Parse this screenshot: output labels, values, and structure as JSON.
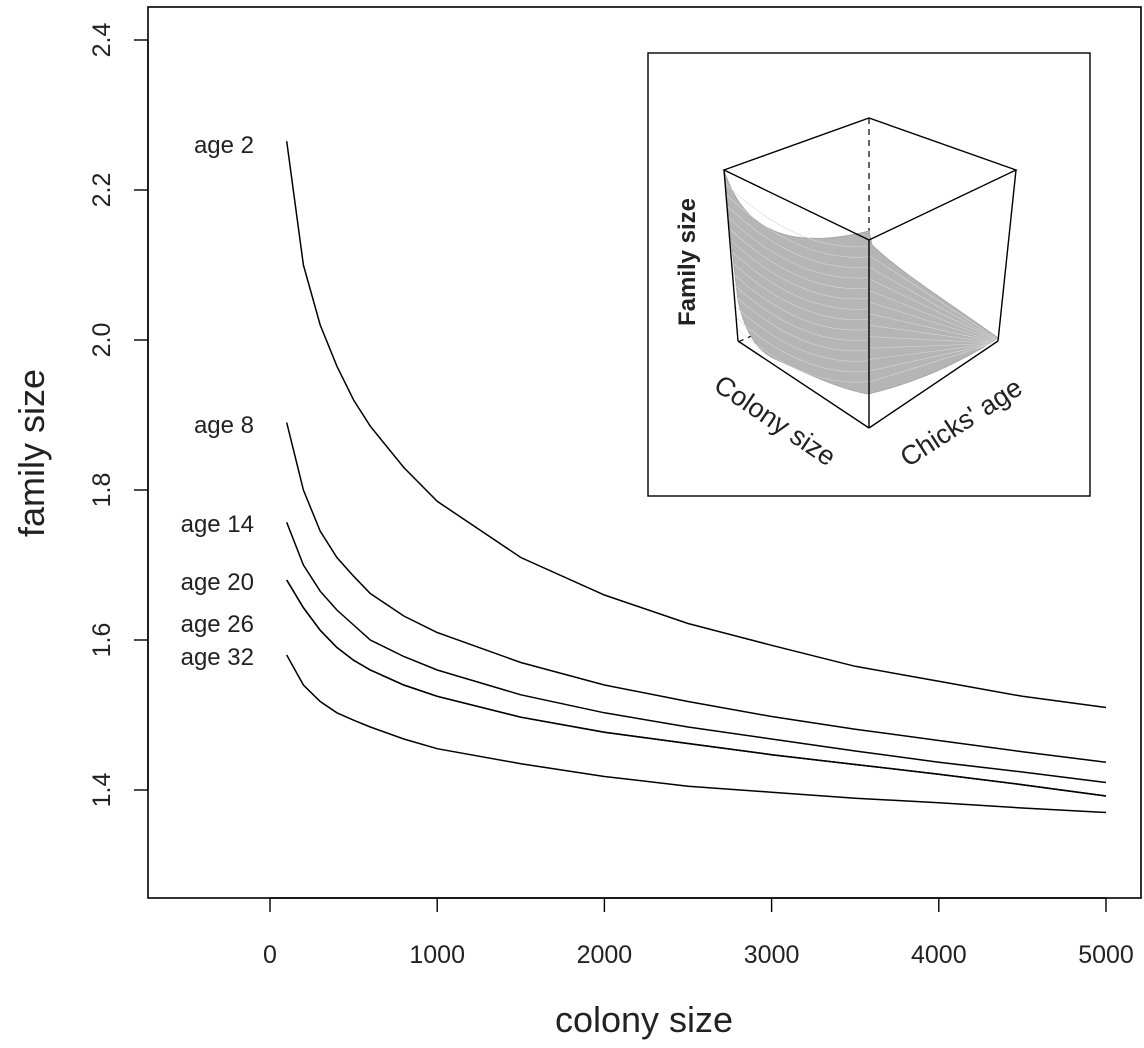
{
  "chart_data": {
    "type": "line",
    "xlabel": "colony size",
    "ylabel": "family size",
    "xlim": [
      -700,
      5200
    ],
    "ylim": [
      1.26,
      2.44
    ],
    "x_ticks": [
      0,
      1000,
      2000,
      3000,
      4000,
      5000
    ],
    "y_ticks": [
      1.4,
      1.6,
      1.8,
      2.0,
      2.2,
      2.4
    ],
    "x_tick_labels": [
      "0",
      "1000",
      "2000",
      "3000",
      "4000",
      "5000"
    ],
    "y_tick_labels": [
      "1.4",
      "1.6",
      "1.8",
      "2.0",
      "2.2",
      "2.4"
    ],
    "grid": false,
    "legend": "none",
    "line_color": "#000000",
    "x": [
      100,
      200,
      300,
      400,
      500,
      600,
      800,
      1000,
      1500,
      2000,
      2500,
      3000,
      3500,
      4000,
      4500,
      5000
    ],
    "series": [
      {
        "name": "age 2",
        "values": [
          2.265,
          2.1,
          2.02,
          1.965,
          1.92,
          1.885,
          1.83,
          1.785,
          1.71,
          1.66,
          1.622,
          1.593,
          1.565,
          1.545,
          1.525,
          1.51
        ]
      },
      {
        "name": "age 8",
        "values": [
          1.89,
          1.8,
          1.745,
          1.71,
          1.685,
          1.662,
          1.632,
          1.61,
          1.57,
          1.54,
          1.518,
          1.498,
          1.481,
          1.466,
          1.451,
          1.437
        ]
      },
      {
        "name": "age 14",
        "values": [
          1.757,
          1.7,
          1.665,
          1.64,
          1.62,
          1.6,
          1.578,
          1.56,
          1.527,
          1.503,
          1.484,
          1.468,
          1.452,
          1.437,
          1.424,
          1.41
        ]
      },
      {
        "name": "age 20",
        "values": [
          1.68,
          1.643,
          1.613,
          1.59,
          1.573,
          1.56,
          1.54,
          1.525,
          1.497,
          1.477,
          1.462,
          1.447,
          1.434,
          1.421,
          1.407,
          1.392
        ]
      },
      {
        "name": "age 26",
        "values": [
          1.68,
          1.643,
          1.613,
          1.59,
          1.573,
          1.56,
          1.54,
          1.525,
          1.497,
          1.477,
          1.462,
          1.447,
          1.434,
          1.421,
          1.407,
          1.392
        ]
      },
      {
        "name": "age 32",
        "values": [
          1.58,
          1.54,
          1.518,
          1.503,
          1.493,
          1.484,
          1.468,
          1.455,
          1.435,
          1.418,
          1.405,
          1.397,
          1.389,
          1.383,
          1.376,
          1.37
        ]
      }
    ],
    "inset": {
      "type": "surface-3d",
      "xlabel": "Colony size",
      "ylabel": "Chicks' age",
      "zlabel": "Family size",
      "surface_color": "#b5b5b5"
    }
  }
}
